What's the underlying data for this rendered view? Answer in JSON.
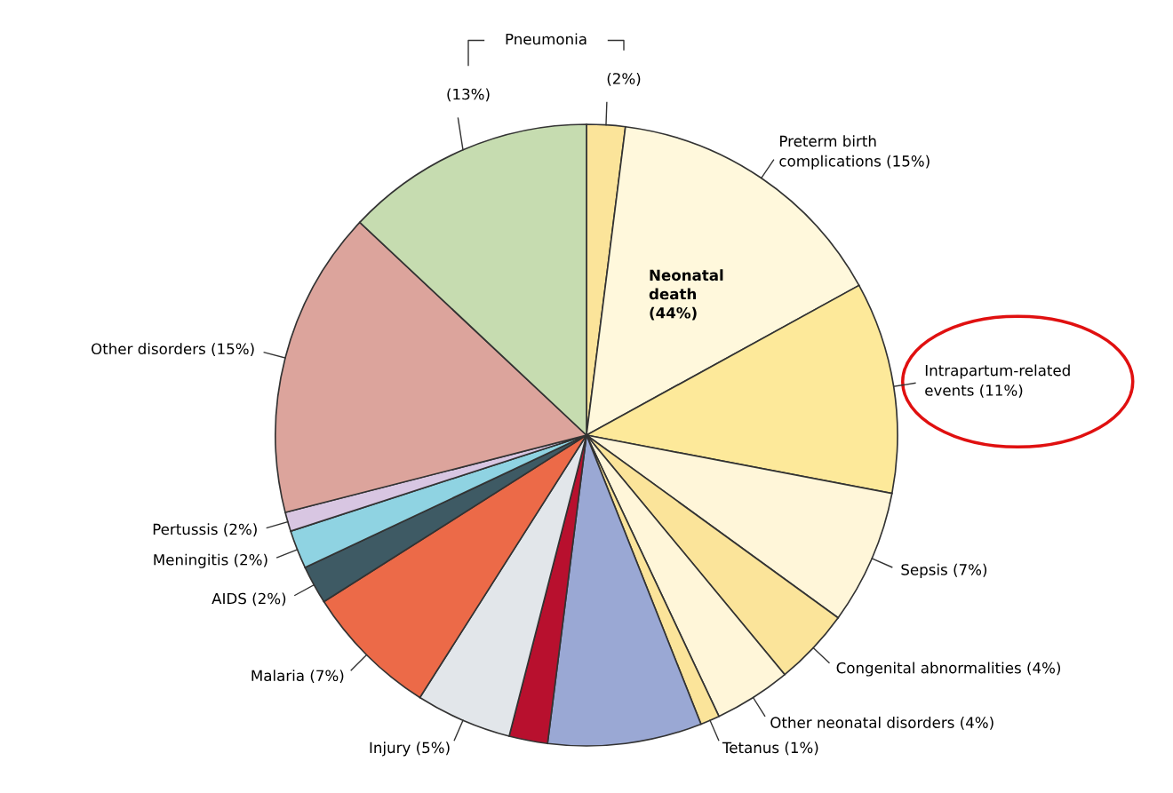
{
  "chart_data": {
    "type": "pie",
    "categories": [
      "(2%)",
      "Preterm birth\ncomplications (15%)",
      "Intrapartum-related\nevents (11%)",
      "Sepsis (7%)",
      "Congenital abnormalities (4%)",
      "Other neonatal disorders (4%)",
      "Tetanus (1%)",
      null,
      null,
      "Injury (5%)",
      "Malaria (7%)",
      "AIDS (2%)",
      "Meningitis (2%)",
      "Pertussis (2%)",
      "Other disorders (15%)",
      "(13%)"
    ],
    "values": [
      2,
      15,
      11,
      7,
      4,
      4,
      1,
      8,
      2,
      5,
      7,
      2,
      2,
      1,
      16,
      13
    ],
    "colors": [
      "#fbe49a",
      "#fff8dc",
      "#fde99a",
      "#fff6d9",
      "#fbe49a",
      "#fff6d9",
      "#fbe49a",
      "#9aa8d4",
      "#b8102e",
      "#e2e6ea",
      "#ec6a48",
      "#3e5a64",
      "#8fd3e2",
      "#d8c6e2",
      "#dca49c",
      "#c6dcb0"
    ],
    "annotations": [
      "Pneumonia",
      "Neonatal\ndeath\n(44%)"
    ]
  }
}
